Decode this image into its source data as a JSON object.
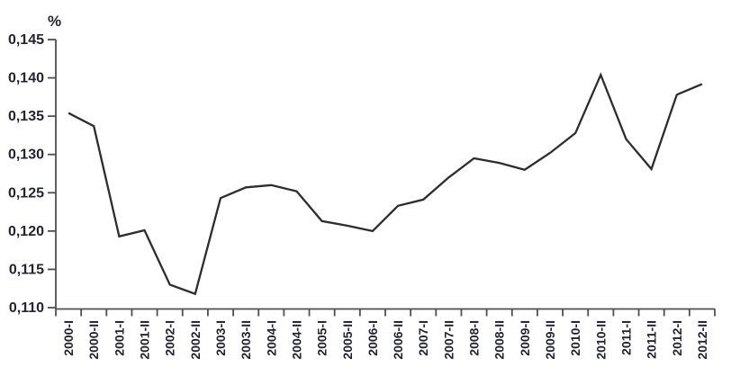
{
  "figure": {
    "unit_label": "%"
  },
  "chart_data": {
    "type": "line",
    "title": "",
    "xlabel": "",
    "ylabel": "%",
    "unit_label": "%",
    "categories": [
      "2000-I",
      "2000-II",
      "2001-I",
      "2001-II",
      "2002-I",
      "2002-II",
      "2003-I",
      "2003-II",
      "2004-I",
      "2004-II",
      "2005-I",
      "2005-II",
      "2006-I",
      "2006-II",
      "2007-I",
      "2007-II",
      "2008-I",
      "2008-II",
      "2009-I",
      "2009-II",
      "2010-I",
      "2010-II",
      "2011-I",
      "2011-II",
      "2012-I",
      "2012-II"
    ],
    "values": [
      0.1354,
      0.1337,
      0.1193,
      0.1201,
      0.113,
      0.1118,
      0.1243,
      0.1257,
      0.126,
      0.1252,
      0.1213,
      0.1207,
      0.12,
      0.1233,
      0.1241,
      0.127,
      0.1295,
      0.1289,
      0.128,
      0.1302,
      0.1328,
      0.1404,
      0.132,
      0.1281,
      0.1378,
      0.1392
    ],
    "ylim": [
      0.11,
      0.145
    ],
    "y_tick_step": 0.005,
    "y_tick_labels": [
      "0,110",
      "0,115",
      "0,120",
      "0,125",
      "0,130",
      "0,135",
      "0,140",
      "0,145"
    ],
    "decimal_separator": ",",
    "grid": false,
    "legend_position": "none",
    "line_color": "#2d2d2d",
    "axis_color": "#4f4f4f",
    "text_color": "#232334"
  }
}
